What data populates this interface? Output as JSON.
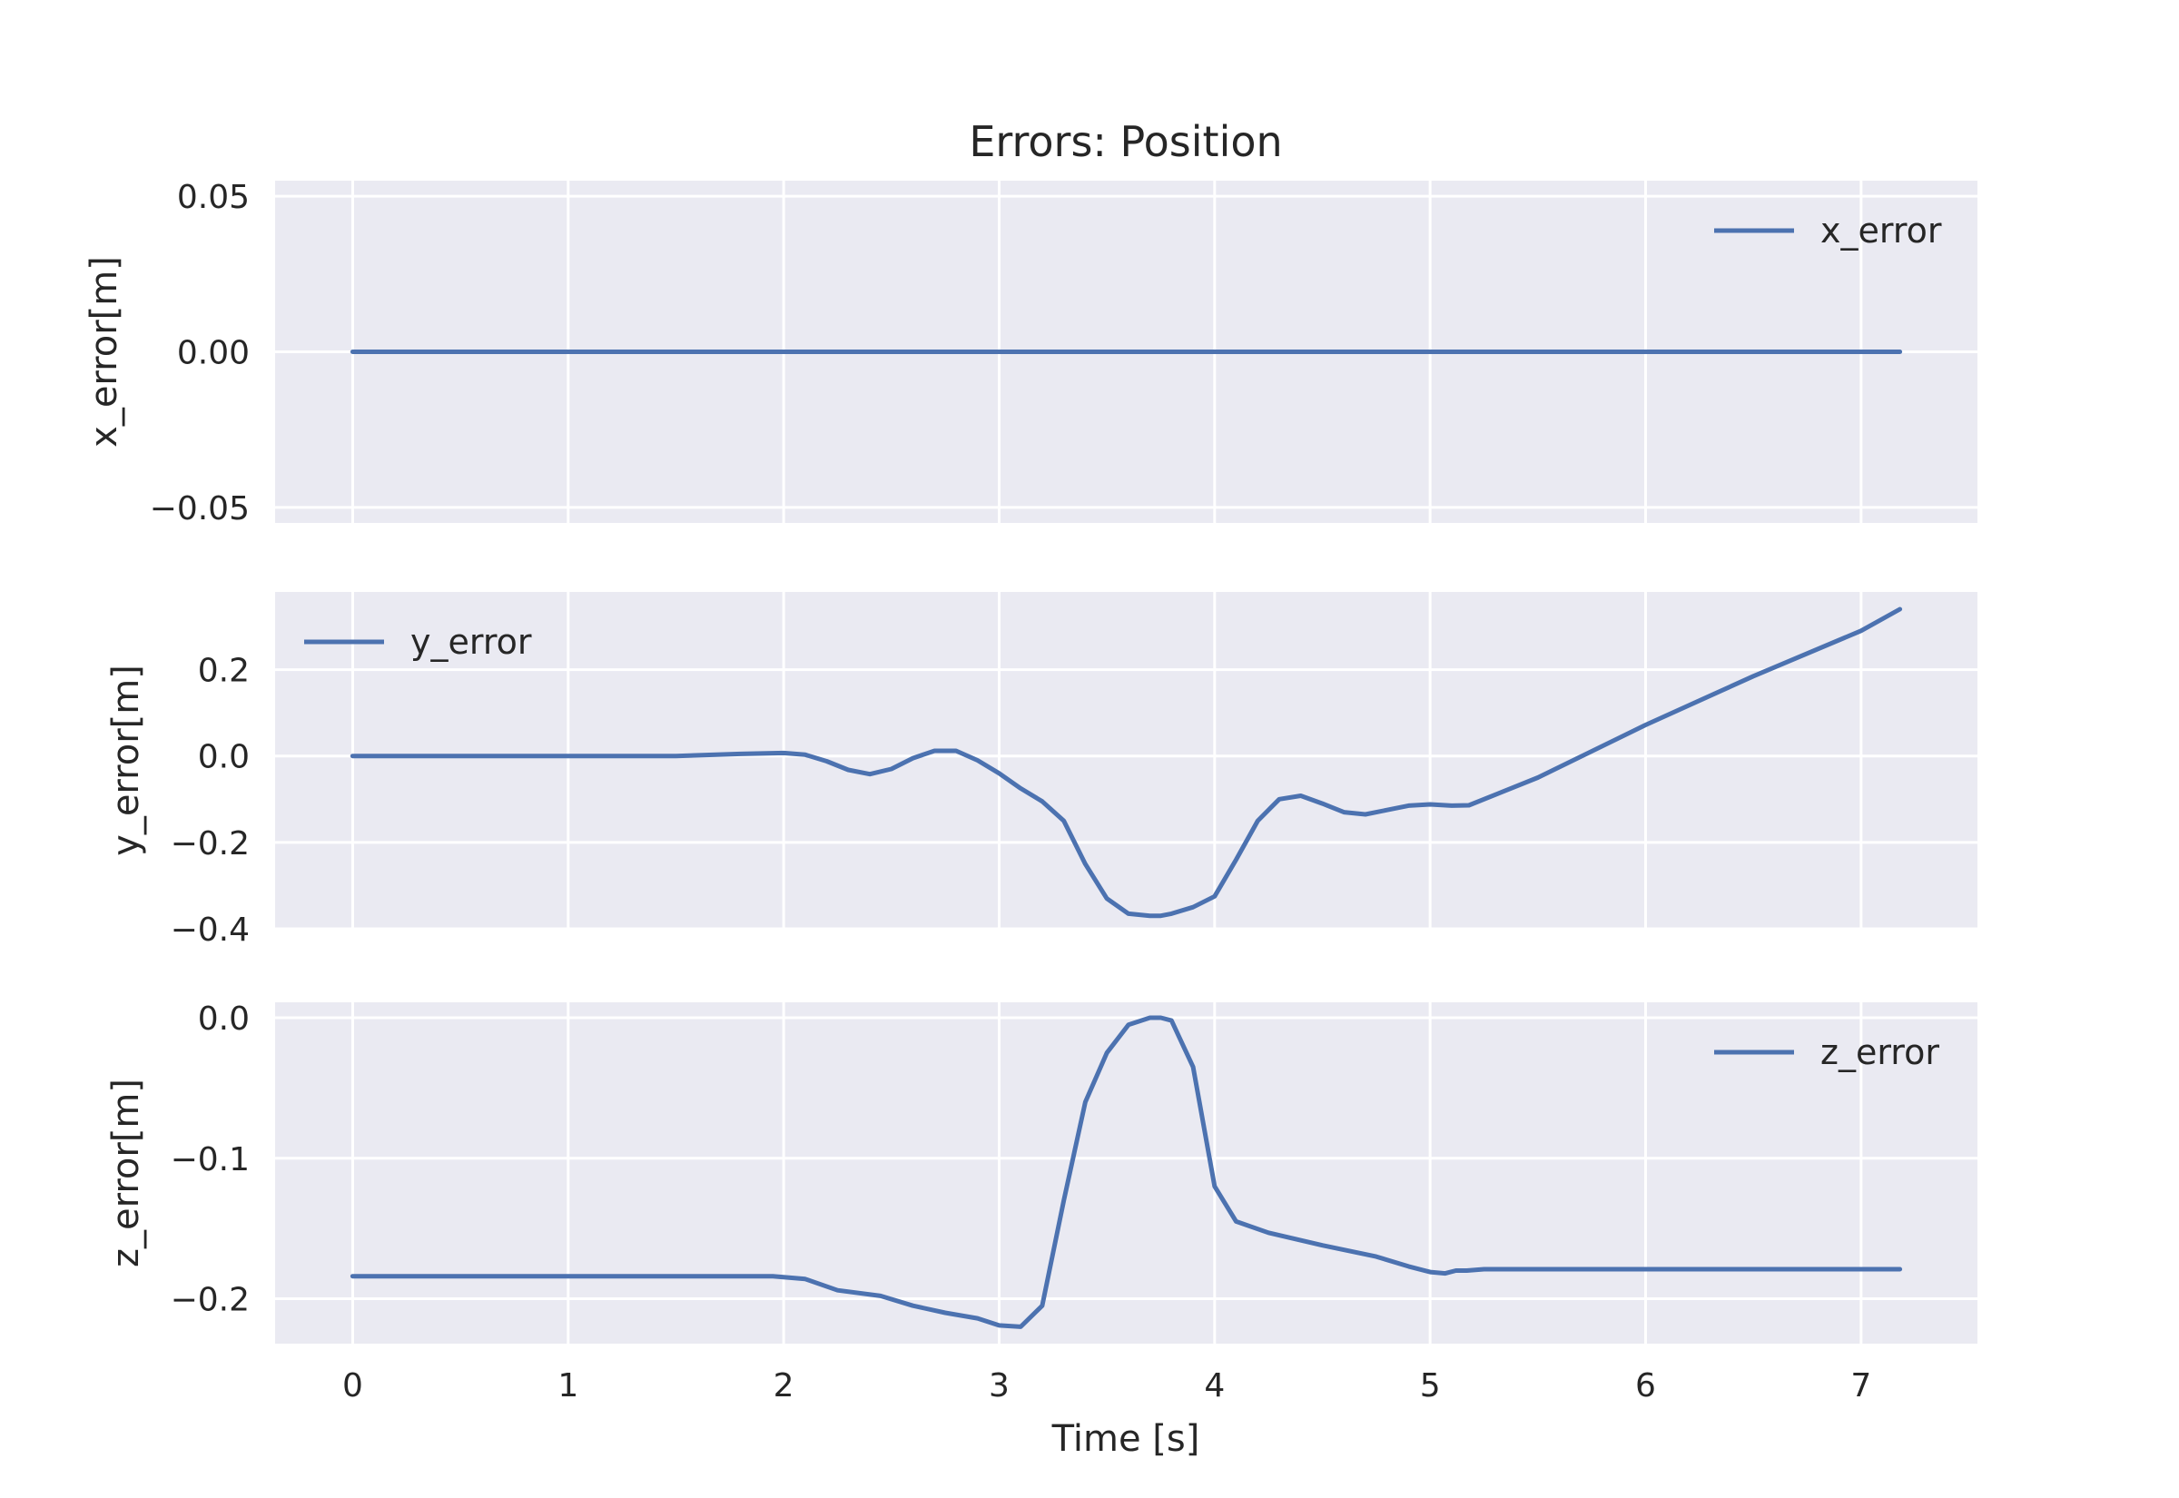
{
  "figure": {
    "title": "Errors: Position",
    "shared_xlabel": "Time [s]",
    "background": "#ffffff",
    "axes_facecolor": "#eaeaf2",
    "grid_color": "#ffffff",
    "line_color": "#4c72b0"
  },
  "chart_data": [
    {
      "type": "line",
      "title": "Errors: Position",
      "xlabel": "",
      "ylabel": "x_error[m]",
      "xlim": [
        -0.36,
        7.54
      ],
      "ylim": [
        -0.055,
        0.055
      ],
      "xticks": [
        0,
        1,
        2,
        3,
        4,
        5,
        6,
        7
      ],
      "xtick_labels": [
        "",
        "",
        "",
        "",
        "",
        "",
        "",
        ""
      ],
      "yticks": [
        -0.05,
        0.0,
        0.05
      ],
      "ytick_labels": [
        "−0.05",
        "0.00",
        "0.05"
      ],
      "grid": true,
      "legend_position": "upper right",
      "series": [
        {
          "name": "x_error",
          "x": [
            0,
            1,
            2,
            3,
            4,
            5,
            6,
            7,
            7.18
          ],
          "y": [
            0,
            0,
            0,
            0,
            0,
            0,
            0,
            0,
            0
          ]
        }
      ]
    },
    {
      "type": "line",
      "xlabel": "",
      "ylabel": "y_error[m]",
      "xlim": [
        -0.36,
        7.54
      ],
      "ylim": [
        -0.4,
        0.38
      ],
      "xticks": [
        0,
        1,
        2,
        3,
        4,
        5,
        6,
        7
      ],
      "xtick_labels": [
        "",
        "",
        "",
        "",
        "",
        "",
        "",
        ""
      ],
      "yticks": [
        -0.4,
        -0.2,
        0.0,
        0.2
      ],
      "ytick_labels": [
        "−0.4",
        "−0.2",
        "0.0",
        "0.2"
      ],
      "grid": true,
      "legend_position": "upper left",
      "series": [
        {
          "name": "y_error",
          "x": [
            0,
            0.5,
            1.0,
            1.5,
            1.8,
            2.0,
            2.1,
            2.2,
            2.3,
            2.4,
            2.5,
            2.6,
            2.7,
            2.8,
            2.9,
            3.0,
            3.1,
            3.2,
            3.3,
            3.4,
            3.5,
            3.6,
            3.7,
            3.75,
            3.8,
            3.9,
            4.0,
            4.1,
            4.2,
            4.3,
            4.4,
            4.5,
            4.6,
            4.7,
            4.8,
            4.9,
            5.0,
            5.1,
            5.18,
            5.5,
            6.0,
            6.5,
            7.0,
            7.18
          ],
          "y": [
            0,
            0,
            0,
            0,
            0.005,
            0.007,
            0.003,
            -0.012,
            -0.032,
            -0.042,
            -0.03,
            -0.005,
            0.012,
            0.012,
            -0.01,
            -0.04,
            -0.075,
            -0.105,
            -0.15,
            -0.25,
            -0.33,
            -0.365,
            -0.37,
            -0.37,
            -0.365,
            -0.35,
            -0.325,
            -0.24,
            -0.15,
            -0.1,
            -0.092,
            -0.11,
            -0.13,
            -0.135,
            -0.125,
            -0.115,
            -0.112,
            -0.115,
            -0.114,
            -0.05,
            0.072,
            0.185,
            0.29,
            0.34
          ]
        }
      ]
    },
    {
      "type": "line",
      "xlabel": "Time [s]",
      "ylabel": "z_error[m]",
      "xlim": [
        -0.36,
        7.54
      ],
      "ylim": [
        -0.232,
        0.011
      ],
      "xticks": [
        0,
        1,
        2,
        3,
        4,
        5,
        6,
        7
      ],
      "xtick_labels": [
        "0",
        "1",
        "2",
        "3",
        "4",
        "5",
        "6",
        "7"
      ],
      "yticks": [
        -0.2,
        -0.1,
        0.0
      ],
      "ytick_labels": [
        "−0.2",
        "−0.1",
        "0.0"
      ],
      "grid": true,
      "legend_position": "upper right",
      "series": [
        {
          "name": "z_error",
          "x": [
            0,
            1.0,
            1.95,
            2.1,
            2.25,
            2.45,
            2.6,
            2.75,
            2.9,
            3.0,
            3.1,
            3.2,
            3.3,
            3.4,
            3.5,
            3.6,
            3.7,
            3.75,
            3.8,
            3.9,
            4.0,
            4.1,
            4.25,
            4.5,
            4.75,
            4.9,
            5.0,
            5.07,
            5.12,
            5.17,
            5.25,
            5.5,
            6.0,
            6.5,
            7.18
          ],
          "y": [
            -0.184,
            -0.184,
            -0.184,
            -0.186,
            -0.194,
            -0.198,
            -0.205,
            -0.21,
            -0.214,
            -0.219,
            -0.22,
            -0.205,
            -0.13,
            -0.06,
            -0.025,
            -0.005,
            0.0,
            0.0,
            -0.002,
            -0.035,
            -0.12,
            -0.145,
            -0.153,
            -0.162,
            -0.17,
            -0.177,
            -0.181,
            -0.182,
            -0.18,
            -0.18,
            -0.179,
            -0.179,
            -0.179,
            -0.179,
            -0.179
          ]
        }
      ]
    }
  ]
}
